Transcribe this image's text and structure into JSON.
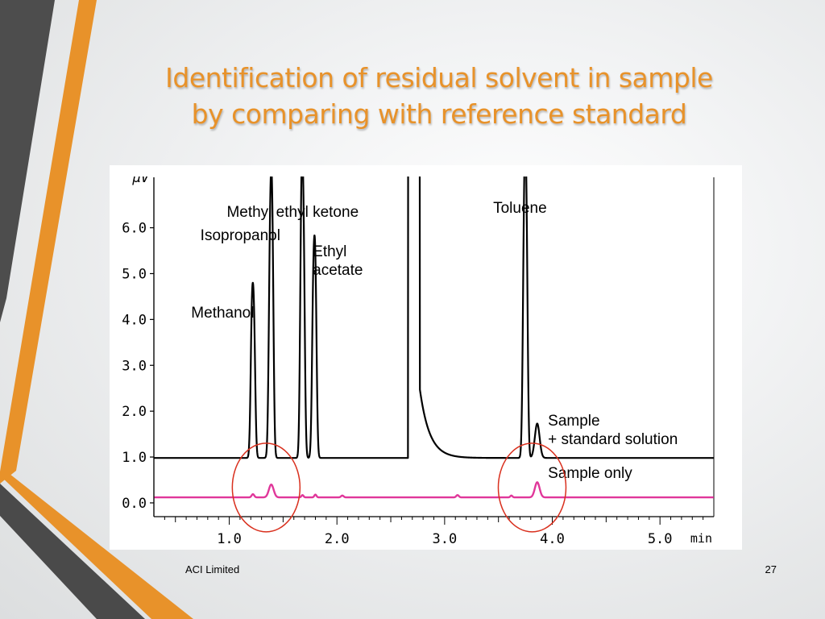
{
  "slide": {
    "title_line1": "Identification of residual solvent in sample",
    "title_line2": "by comparing with reference standard",
    "footer_left": "ACI Limited",
    "page_number": "27"
  },
  "colors": {
    "accent_orange": "#e8922a",
    "dark_bar": "#4a4a4a",
    "sample_plus_std_trace": "#000000",
    "sample_only_trace": "#e0379a",
    "highlight_circle": "#d9301e"
  },
  "chart_data": {
    "type": "line",
    "ylabel": "µV",
    "xlabel": "min",
    "xlim": [
      0.3,
      5.5
    ],
    "ylim": [
      -0.3,
      7.1
    ],
    "x_ticks": [
      1.0,
      2.0,
      3.0,
      4.0,
      5.0
    ],
    "x_tick_labels": [
      "1.0",
      "2.0",
      "3.0",
      "4.0",
      "5.0"
    ],
    "y_ticks": [
      0.0,
      1.0,
      2.0,
      3.0,
      4.0,
      5.0,
      6.0
    ],
    "y_tick_labels": [
      "0.0",
      "1.0",
      "2.0",
      "3.0",
      "4.0",
      "5.0",
      "6.0"
    ],
    "series": [
      {
        "name": "Sample + standard solution",
        "color": "#000000",
        "baseline": 0.98,
        "peaks": [
          {
            "x": 1.21,
            "height": 2.8,
            "width": 0.012
          },
          {
            "x": 1.23,
            "height": 2.6,
            "width": 0.012
          },
          {
            "x": 1.38,
            "height": 4.5,
            "width": 0.013
          },
          {
            "x": 1.4,
            "height": 4.2,
            "width": 0.012
          },
          {
            "x": 1.67,
            "height": 5.05,
            "width": 0.012
          },
          {
            "x": 1.69,
            "height": 4.3,
            "width": 0.012
          },
          {
            "x": 1.78,
            "height": 3.25,
            "width": 0.012
          },
          {
            "x": 1.8,
            "height": 3.6,
            "width": 0.012
          },
          {
            "x": 3.74,
            "height": 5.1,
            "width": 0.013
          },
          {
            "x": 3.76,
            "height": 4.3,
            "width": 0.012
          },
          {
            "x": 3.86,
            "height": 0.75,
            "width": 0.022
          }
        ],
        "solvent_front": {
          "start": 2.66,
          "end": 2.77,
          "tail_height": 1.5,
          "tail_decay": 0.09
        }
      },
      {
        "name": "Sample only",
        "color": "#e0379a",
        "baseline": 0.12,
        "peaks": [
          {
            "x": 1.22,
            "height": 0.07,
            "width": 0.012
          },
          {
            "x": 1.39,
            "height": 0.28,
            "width": 0.022
          },
          {
            "x": 1.68,
            "height": 0.05,
            "width": 0.01
          },
          {
            "x": 1.8,
            "height": 0.06,
            "width": 0.01
          },
          {
            "x": 2.05,
            "height": 0.04,
            "width": 0.012
          },
          {
            "x": 3.12,
            "height": 0.05,
            "width": 0.012
          },
          {
            "x": 3.62,
            "height": 0.04,
            "width": 0.01
          },
          {
            "x": 3.86,
            "height": 0.33,
            "width": 0.022
          }
        ]
      }
    ],
    "annotations": [
      {
        "text": "Methanol",
        "x": 1.23
      },
      {
        "text": "Isopropanol",
        "x": 1.39
      },
      {
        "text": "Methyl ethyl ketone",
        "x": 1.68
      },
      {
        "text": "Ethyl",
        "x": 1.79
      },
      {
        "text": "acetate",
        "x": 1.79
      },
      {
        "text": "Toluene",
        "x": 3.75
      },
      {
        "text": "Sample",
        "x": 3.96
      },
      {
        "text": "+ standard solution",
        "x": 3.96
      },
      {
        "text": "Sample only",
        "x": 3.96
      }
    ],
    "highlight_circles": [
      {
        "x": 1.38,
        "y": 0.3
      },
      {
        "x": 3.85,
        "y": 0.3
      }
    ]
  }
}
